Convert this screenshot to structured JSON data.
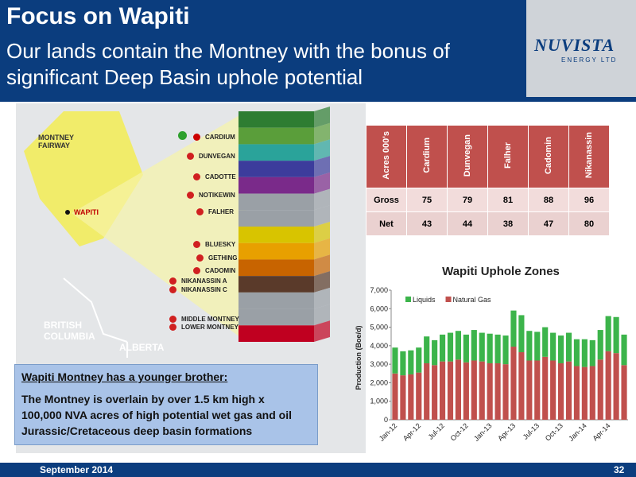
{
  "header": {
    "title": "Focus on Wapiti",
    "subtitle": "Our lands contain the Montney with the bonus of significant Deep Basin uphole potential"
  },
  "logo": {
    "name": "NUVISTA",
    "tagline": "ENERGY LTD"
  },
  "map": {
    "labels": [
      "MONTNEY FAIRWAY",
      "WAPITI",
      "BRITISH COLUMBIA",
      "ALBERTA"
    ],
    "formations": [
      "CARDIUM",
      "DUNVEGAN",
      "CADOTTE",
      "NOTIKEWIN",
      "FALHER",
      "BLUESKY",
      "GETHING",
      "CADOMIN",
      "NIKANASSIN A",
      "NIKANASSIN C",
      "MIDDLE MONTNEY",
      "LOWER MONTNEY"
    ]
  },
  "table": {
    "header": [
      "Acres 000's",
      "Cardium",
      "Dunvegan",
      "Falher",
      "Cadomin",
      "Nikanassin"
    ],
    "rows": [
      [
        "Gross",
        75,
        79,
        81,
        88,
        96
      ],
      [
        "Net",
        43,
        44,
        38,
        47,
        80
      ]
    ]
  },
  "callout": {
    "heading": "Wapiti Montney has a younger brother:",
    "body": "The Montney is overlain by over 1.5 km high x 100,000 NVA acres of high potential wet gas and oil Jurassic/Cretaceous deep basin formations"
  },
  "chart_data": {
    "type": "bar",
    "stacked": true,
    "title": "Wapiti Uphole Zones",
    "y_label": "Production (Boe/d)",
    "categories": [
      "Jan-12",
      null,
      null,
      "Apr-12",
      null,
      null,
      "Jul-12",
      null,
      null,
      "Oct-12",
      null,
      null,
      "Jan-13",
      null,
      null,
      "Apr-13",
      null,
      null,
      "Jul-13",
      null,
      null,
      "Oct-13",
      null,
      null,
      "Jan-14",
      null,
      null,
      "Apr-14",
      null,
      null
    ],
    "series": [
      {
        "name": "Liquids",
        "color": "#3cb44b",
        "values": [
          1400,
          1300,
          1300,
          1350,
          1450,
          1350,
          1450,
          1550,
          1550,
          1500,
          1650,
          1550,
          1600,
          1550,
          1550,
          1950,
          2000,
          1600,
          1550,
          1600,
          1500,
          1500,
          1550,
          1450,
          1500,
          1400,
          1600,
          1900,
          1950,
          1650
        ]
      },
      {
        "name": "Natural Gas",
        "color": "#c0504d",
        "values": [
          2500,
          2400,
          2450,
          2550,
          3050,
          2950,
          3150,
          3150,
          3250,
          3100,
          3200,
          3150,
          3050,
          3050,
          3000,
          3950,
          3650,
          3200,
          3200,
          3400,
          3200,
          3050,
          3150,
          2900,
          2850,
          2900,
          3250,
          3700,
          3600,
          2950
        ]
      }
    ],
    "ylim": [
      0,
      7000
    ],
    "yticks": [
      0,
      {
        "value": 1000,
        "label": "1,000"
      },
      {
        "value": 2000,
        "label": "2,000"
      },
      {
        "value": 3000,
        "label": "3,000"
      },
      {
        "value": 4000,
        "label": "4,000"
      },
      {
        "value": 5000,
        "label": "5,000"
      },
      {
        "value": 6000,
        "label": "6,000"
      },
      {
        "value": 7000,
        "label": "7,000"
      }
    ],
    "grid": false,
    "legend": "top-left"
  },
  "footer": {
    "date": "September 2014",
    "page": "32"
  }
}
